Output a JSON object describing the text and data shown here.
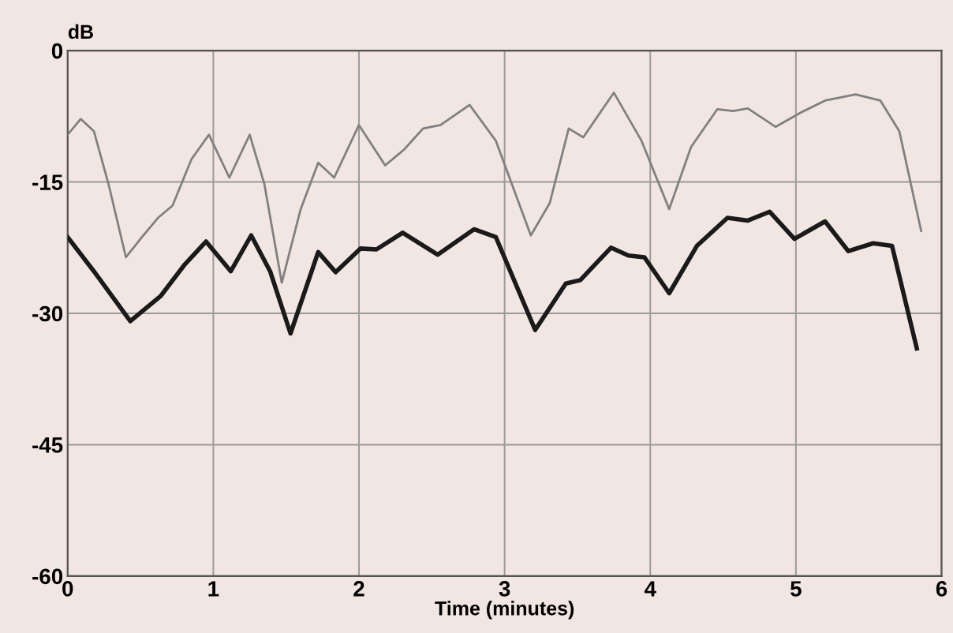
{
  "chart_data": {
    "type": "line",
    "xlabel": "Time (minutes)",
    "ylabel": "dB",
    "xlim": [
      0,
      6
    ],
    "xticks": [
      0,
      1,
      2,
      3,
      4,
      5,
      6
    ],
    "ylim": [
      -60,
      0
    ],
    "yticks": [
      -60,
      -45,
      -30,
      -15,
      0
    ],
    "grid": true,
    "series": [
      {
        "color": "#808080",
        "x": [
          0,
          0.09,
          0.18,
          0.28,
          0.4,
          0.51,
          0.62,
          0.72,
          0.85,
          0.97,
          1.11,
          1.25,
          1.35,
          1.47,
          1.6,
          1.72,
          1.83,
          2.0,
          2.18,
          2.31,
          2.44,
          2.56,
          2.76,
          2.94,
          3.18,
          3.31,
          3.44,
          3.54,
          3.75,
          3.94,
          4.13,
          4.28,
          4.46,
          4.57,
          4.67,
          4.86,
          5.03,
          5.2,
          5.41,
          5.58,
          5.71,
          5.86
        ],
        "values": [
          -9.6,
          -7.8,
          -9.2,
          -15.2,
          -23.6,
          -21.3,
          -19.1,
          -17.7,
          -12.4,
          -9.6,
          -14.5,
          -9.6,
          -15.2,
          -26.5,
          -18.1,
          -12.8,
          -14.5,
          -8.5,
          -13.1,
          -11.3,
          -8.9,
          -8.5,
          -6.2,
          -10.3,
          -21.1,
          -17.4,
          -8.9,
          -9.9,
          -4.8,
          -10.3,
          -18.1,
          -11.0,
          -6.7,
          -6.9,
          -6.6,
          -8.7,
          -7.1,
          -5.7,
          -5.0,
          -5.7,
          -9.2,
          -20.6
        ]
      },
      {
        "color": "#1a1a1a",
        "x": [
          0,
          0.18,
          0.43,
          0.64,
          0.8,
          0.95,
          1.12,
          1.26,
          1.39,
          1.53,
          1.72,
          1.84,
          2.01,
          2.12,
          2.3,
          2.54,
          2.79,
          2.94,
          3.21,
          3.42,
          3.52,
          3.73,
          3.85,
          3.96,
          4.13,
          4.32,
          4.53,
          4.67,
          4.82,
          4.99,
          5.2,
          5.36,
          5.53,
          5.66,
          5.83
        ],
        "values": [
          -21.3,
          -25.2,
          -30.9,
          -28.0,
          -24.5,
          -21.8,
          -25.2,
          -21.1,
          -25.2,
          -32.3,
          -23.0,
          -25.3,
          -22.6,
          -22.7,
          -20.8,
          -23.3,
          -20.4,
          -21.3,
          -31.9,
          -26.6,
          -26.2,
          -22.5,
          -23.4,
          -23.6,
          -27.7,
          -22.3,
          -19.1,
          -19.4,
          -18.4,
          -21.5,
          -19.5,
          -22.9,
          -22.0,
          -22.3,
          -34.0
        ]
      }
    ]
  }
}
